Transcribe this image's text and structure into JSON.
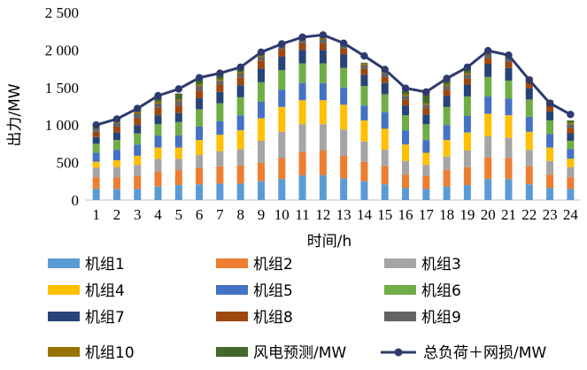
{
  "chart_data": {
    "type": "bar",
    "stacked": true,
    "xlabel": "时间/h",
    "ylabel": "出力/MW",
    "ylim": [
      0,
      2500
    ],
    "yticks": [
      0,
      500,
      1000,
      1500,
      2000,
      2500
    ],
    "ytick_labels": [
      "0",
      "500",
      "1 000",
      "1 500",
      "2 000",
      "2 500"
    ],
    "grid": false,
    "legend_position": "bottom",
    "categories": [
      "1",
      "2",
      "3",
      "4",
      "5",
      "6",
      "7",
      "8",
      "9",
      "10",
      "11",
      "12",
      "13",
      "14",
      "15",
      "16",
      "17",
      "18",
      "19",
      "20",
      "21",
      "22",
      "23",
      "24"
    ],
    "series": [
      {
        "name": "机组1",
        "color": "#5b9bd5",
        "values": [
          150,
          150,
          150,
          180,
          200,
          210,
          220,
          220,
          250,
          280,
          330,
          330,
          290,
          250,
          210,
          160,
          150,
          180,
          200,
          280,
          280,
          210,
          160,
          150
        ]
      },
      {
        "name": "机组2",
        "color": "#ed7d31",
        "values": [
          150,
          150,
          170,
          200,
          200,
          220,
          230,
          240,
          250,
          280,
          310,
          330,
          300,
          260,
          240,
          180,
          170,
          220,
          240,
          290,
          280,
          240,
          180,
          150
        ]
      },
      {
        "name": "机组3",
        "color": "#a5a5a5",
        "values": [
          130,
          140,
          150,
          170,
          150,
          170,
          200,
          220,
          290,
          350,
          370,
          350,
          350,
          270,
          220,
          180,
          150,
          180,
          220,
          280,
          270,
          220,
          180,
          140
        ]
      },
      {
        "name": "机组4",
        "color": "#ffc000",
        "values": [
          80,
          90,
          120,
          150,
          150,
          200,
          220,
          250,
          300,
          330,
          320,
          320,
          330,
          280,
          280,
          220,
          160,
          220,
          240,
          300,
          300,
          240,
          180,
          110
        ]
      },
      {
        "name": "机组5",
        "color": "#4472c4",
        "values": [
          120,
          140,
          150,
          160,
          160,
          180,
          180,
          200,
          220,
          230,
          230,
          230,
          230,
          200,
          220,
          190,
          170,
          200,
          220,
          230,
          220,
          200,
          180,
          130
        ]
      },
      {
        "name": "机组6",
        "color": "#70ad47",
        "values": [
          120,
          130,
          150,
          150,
          180,
          230,
          240,
          240,
          260,
          260,
          260,
          260,
          260,
          260,
          240,
          200,
          210,
          240,
          260,
          260,
          240,
          230,
          180,
          110
        ]
      },
      {
        "name": "机组7",
        "color": "#264478",
        "values": [
          90,
          100,
          110,
          120,
          120,
          150,
          150,
          160,
          180,
          180,
          180,
          180,
          180,
          150,
          150,
          130,
          130,
          150,
          160,
          170,
          170,
          150,
          120,
          100
        ]
      },
      {
        "name": "机组8",
        "color": "#9e480e",
        "values": [
          70,
          80,
          90,
          100,
          100,
          100,
          100,
          100,
          110,
          100,
          90,
          90,
          80,
          80,
          80,
          80,
          80,
          80,
          80,
          80,
          80,
          80,
          80,
          70
        ]
      },
      {
        "name": "机组9",
        "color": "#636363",
        "values": [
          50,
          50,
          60,
          60,
          60,
          60,
          50,
          50,
          50,
          50,
          50,
          50,
          50,
          50,
          50,
          50,
          50,
          50,
          50,
          50,
          50,
          50,
          50,
          50
        ]
      },
      {
        "name": "机组10",
        "color": "#997300",
        "values": [
          20,
          20,
          20,
          20,
          20,
          20,
          20,
          20,
          20,
          20,
          20,
          20,
          20,
          20,
          20,
          20,
          20,
          20,
          20,
          20,
          20,
          20,
          20,
          20
        ]
      },
      {
        "name": "风电预测/MW",
        "color": "#43682b",
        "values": [
          20,
          30,
          40,
          70,
          80,
          80,
          70,
          60,
          40,
          10,
          10,
          20,
          10,
          10,
          10,
          50,
          150,
          100,
          70,
          0,
          10,
          0,
          0,
          30
        ]
      }
    ],
    "line_series": {
      "name": "总负荷＋网损/MW",
      "color": "#2e3a6e",
      "values": [
        1000,
        1080,
        1220,
        1390,
        1480,
        1630,
        1690,
        1770,
        1970,
        2080,
        2170,
        2200,
        2090,
        1920,
        1740,
        1490,
        1440,
        1620,
        1770,
        1990,
        1930,
        1600,
        1290,
        1140
      ]
    }
  }
}
